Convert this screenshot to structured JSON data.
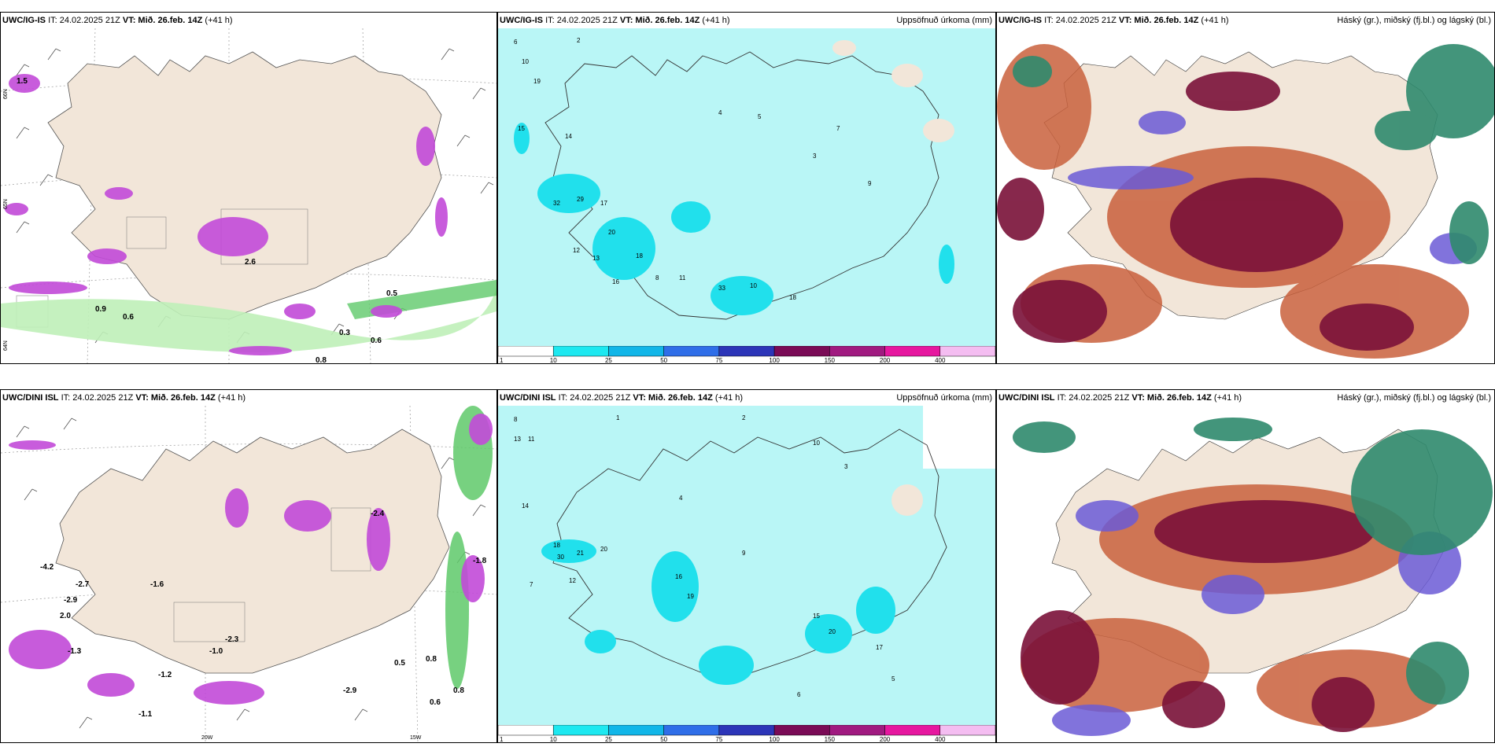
{
  "panels": [
    {
      "id": "tl",
      "model": "UWC/IG-IS",
      "it": "IT: 24.02.2025 21Z",
      "vt_label": "VT:",
      "vt": "Mið. 26.feb. 14Z",
      "lead": "(+41 h)",
      "right_title": "",
      "lat_labels": [
        "66N",
        "65N",
        "64N"
      ],
      "values": [
        "1.5",
        "0.5",
        "0.6",
        "2.6",
        "0.9",
        "0.6",
        "0.3",
        "0.8"
      ]
    },
    {
      "id": "tm",
      "model": "UWC/IG-IS",
      "it": "IT: 24.02.2025 21Z",
      "vt_label": "VT:",
      "vt": "Mið. 26.feb. 14Z",
      "lead": "(+41 h)",
      "right_title": "Uppsöfnuð úrkoma (mm)",
      "values": [
        "6",
        "2",
        "10",
        "19",
        "15",
        "14",
        "32",
        "29",
        "17",
        "20",
        "18",
        "12",
        "13",
        "16",
        "8",
        "11",
        "4",
        "5",
        "3",
        "7",
        "9",
        "33",
        "10",
        "18"
      ]
    },
    {
      "id": "tr",
      "model": "UWC/IG-IS",
      "it": "IT: 24.02.2025 21Z",
      "vt_label": "VT:",
      "vt": "Mið. 26.feb. 14Z",
      "lead": "(+41 h)",
      "right_title": "Háský (gr.), miðský (fj.bl.) og lágský (bl.)"
    },
    {
      "id": "bl",
      "model": "UWC/DINI ISL",
      "it": "IT: 24.02.2025 21Z",
      "vt_label": "VT:",
      "vt": "Mið. 26.feb. 14Z",
      "lead": "(+41 h)",
      "right_title": "",
      "lon_labels": [
        "20W",
        "15W"
      ],
      "values": [
        "-4.2",
        "-2.7",
        "-2.9",
        "2.0",
        "-1.6",
        "-2.4",
        "-1.8",
        "-2.3",
        "-1.0",
        "-1.3",
        "-1.2",
        "-1.1",
        "-2.9",
        "0.5",
        "0.8",
        "0.6",
        "0.8"
      ]
    },
    {
      "id": "bm",
      "model": "UWC/DINI ISL",
      "it": "IT: 24.02.2025 21Z",
      "vt_label": "VT:",
      "vt": "Mið. 26.feb. 14Z",
      "lead": "(+41 h)",
      "right_title": "Uppsöfnuð úrkoma (mm)",
      "values": [
        "8",
        "13",
        "11",
        "14",
        "18",
        "30",
        "21",
        "20",
        "12",
        "16",
        "19",
        "20",
        "15",
        "9",
        "17",
        "7",
        "6",
        "5",
        "4",
        "3",
        "2",
        "1",
        "10"
      ]
    },
    {
      "id": "br",
      "model": "UWC/DINI ISL",
      "it": "IT: 24.02.2025 21Z",
      "vt_label": "VT:",
      "vt": "Mið. 26.feb. 14Z",
      "lead": "(+41 h)",
      "right_title": "Háský (gr.), miðský (fj.bl.) og lágský (bl.)"
    }
  ],
  "colorbar": {
    "labels": [
      "1",
      "10",
      "25",
      "50",
      "75",
      "100",
      "150",
      "200",
      "400"
    ],
    "colors": [
      "#ffffff",
      "#1de8f0",
      "#11b6e8",
      "#2f6ee8",
      "#2c35b8",
      "#7a0b56",
      "#a01a80",
      "#e6179f",
      "#f4bdf1"
    ]
  },
  "colors": {
    "land": "#f2e6d9",
    "precip_bg": "#b9f6f6",
    "precip_hi": "#21e0ec",
    "magenta": "#c24ad8",
    "green": "#8fe08c",
    "cloud_high": "#2f8a6d",
    "cloud_mid": "#6b5bd6",
    "cloud_low": "#7a1138",
    "cloud_orange": "#c9603c"
  }
}
